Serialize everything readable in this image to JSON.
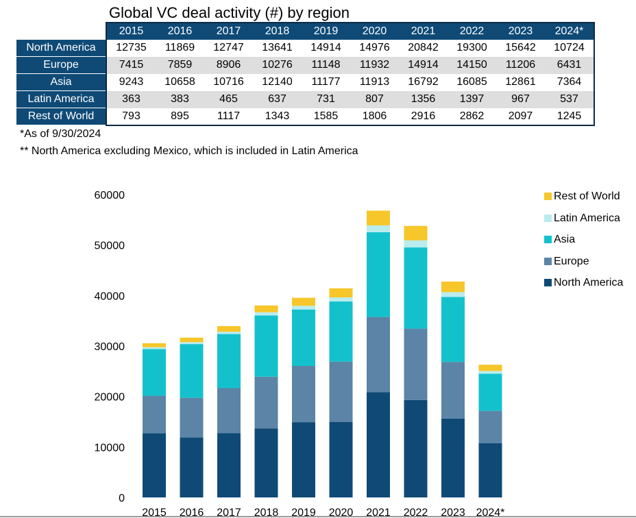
{
  "table": {
    "title": "Global VC deal activity (#) by region",
    "years": [
      "2015",
      "2016",
      "2017",
      "2018",
      "2019",
      "2020",
      "2021",
      "2022",
      "2023",
      "2024*"
    ],
    "rows": [
      {
        "label": "North America",
        "values": [
          "12735",
          "11869",
          "12747",
          "13641",
          "14914",
          "14976",
          "20842",
          "19300",
          "15642",
          "10724"
        ]
      },
      {
        "label": "Europe",
        "values": [
          "7415",
          "7859",
          "8906",
          "10276",
          "11148",
          "11932",
          "14914",
          "14150",
          "11206",
          "6431"
        ]
      },
      {
        "label": "Asia",
        "values": [
          "9243",
          "10658",
          "10716",
          "12140",
          "11177",
          "11913",
          "16792",
          "16085",
          "12861",
          "7364"
        ]
      },
      {
        "label": "Latin America",
        "values": [
          "363",
          "383",
          "465",
          "637",
          "731",
          "807",
          "1356",
          "1397",
          "967",
          "537"
        ]
      },
      {
        "label": "Rest of World",
        "values": [
          "793",
          "895",
          "1117",
          "1343",
          "1585",
          "1806",
          "2916",
          "2862",
          "2097",
          "1245"
        ]
      }
    ]
  },
  "notes": {
    "note1": "*As of 9/30/2024",
    "note2": "** North America excluding Mexico, which is included in Latin America"
  },
  "chart_data": {
    "type": "bar",
    "stacked": true,
    "categories": [
      "2015",
      "2016",
      "2017",
      "2018",
      "2019",
      "2020",
      "2021",
      "2022",
      "2023",
      "2024*"
    ],
    "series": [
      {
        "name": "North America",
        "color": "#0f4a76",
        "values": [
          12735,
          11869,
          12747,
          13641,
          14914,
          14976,
          20842,
          19300,
          15642,
          10724
        ]
      },
      {
        "name": "Europe",
        "color": "#5b84a6",
        "values": [
          7415,
          7859,
          8906,
          10276,
          11148,
          11932,
          14914,
          14150,
          11206,
          6431
        ]
      },
      {
        "name": "Asia",
        "color": "#13c1cc",
        "values": [
          9243,
          10658,
          10716,
          12140,
          11177,
          11913,
          16792,
          16085,
          12861,
          7364
        ]
      },
      {
        "name": "Latin America",
        "color": "#b9ecef",
        "values": [
          363,
          383,
          465,
          637,
          731,
          807,
          1356,
          1397,
          967,
          537
        ]
      },
      {
        "name": "Rest of World",
        "color": "#f6c62a",
        "values": [
          793,
          895,
          1117,
          1343,
          1585,
          1806,
          2916,
          2862,
          2097,
          1245
        ]
      }
    ],
    "yticks": [
      "0",
      "10000",
      "20000",
      "30000",
      "40000",
      "50000",
      "60000"
    ],
    "ylim": [
      0,
      60000
    ],
    "grid": false,
    "legend_position": "right",
    "legend_order": [
      "Rest of World",
      "Latin America",
      "Asia",
      "Europe",
      "North America"
    ]
  }
}
